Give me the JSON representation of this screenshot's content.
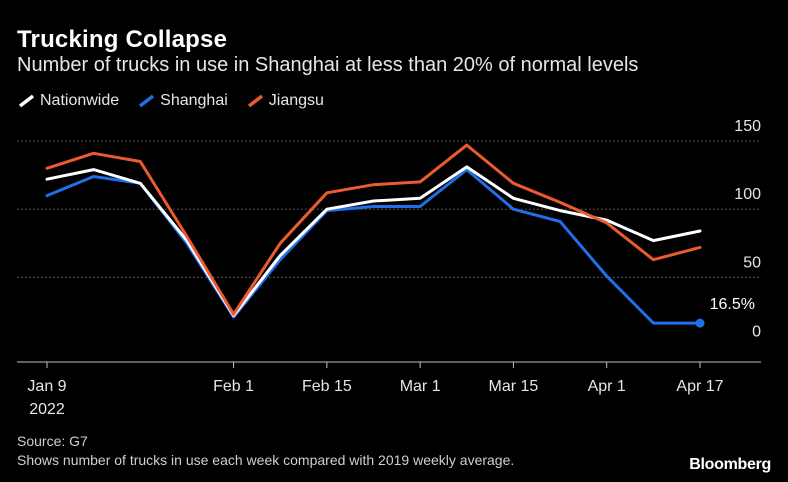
{
  "title": "Trucking Collapse",
  "subtitle": "Number of trucks in use in Shanghai at less than 20% of normal levels",
  "source": "Source: G7",
  "note": "Shows number of trucks in use each week compared with 2019 weekly average.",
  "brand": "Bloomberg",
  "colors": {
    "background": "#000000",
    "grid": "#6b6b6b",
    "axis": "#bfbfbf",
    "nationwide": "#ffffff",
    "shanghai": "#1f6fe8",
    "jiangsu": "#ea5b2f"
  },
  "chart_data": {
    "type": "line",
    "title": "Trucking Collapse",
    "subtitle": "Number of trucks in use in Shanghai at less than 20% of normal levels",
    "x": [
      "2022-01-09",
      "2022-01-16",
      "2022-01-23",
      "2022-01-30",
      "2022-02-06",
      "2022-02-13",
      "2022-02-20",
      "2022-02-27",
      "2022-03-06",
      "2022-03-13",
      "2022-03-20",
      "2022-03-27",
      "2022-04-03",
      "2022-04-10",
      "2022-04-17"
    ],
    "x_tick_labels": [
      {
        "x": "2022-01-09",
        "label": "Jan 9",
        "sublabel": "2022"
      },
      {
        "x": "2022-02-06",
        "label": "Feb 1"
      },
      {
        "x": "2022-02-20",
        "label": "Feb 15"
      },
      {
        "x": "2022-03-06",
        "label": "Mar 1"
      },
      {
        "x": "2022-03-20",
        "label": "Mar 15"
      },
      {
        "x": "2022-04-03",
        "label": "Apr 1"
      },
      {
        "x": "2022-04-17",
        "label": "Apr 17"
      }
    ],
    "y_ticks": [
      0,
      50,
      100,
      150
    ],
    "ylim": [
      -12,
      150
    ],
    "grid": true,
    "legend_position": "top-left",
    "series": [
      {
        "name": "Nationwide",
        "color": "#ffffff",
        "values": [
          122,
          129,
          119,
          77,
          22,
          66,
          100,
          106,
          108,
          131,
          108,
          99,
          92,
          77,
          84
        ]
      },
      {
        "name": "Shanghai",
        "color": "#1f6fe8",
        "values": [
          110,
          124,
          119,
          75,
          21,
          63,
          99,
          102,
          102,
          129,
          100,
          91,
          51,
          16.5,
          16.5
        ]
      },
      {
        "name": "Jiangsu",
        "color": "#ea5b2f",
        "values": [
          130,
          141,
          135,
          80,
          23,
          75,
          112,
          118,
          120,
          147,
          119,
          105,
          90,
          63,
          72
        ]
      }
    ],
    "annotations": [
      {
        "series": "Shanghai",
        "x": "2022-04-17",
        "text": "16.5%"
      }
    ]
  }
}
